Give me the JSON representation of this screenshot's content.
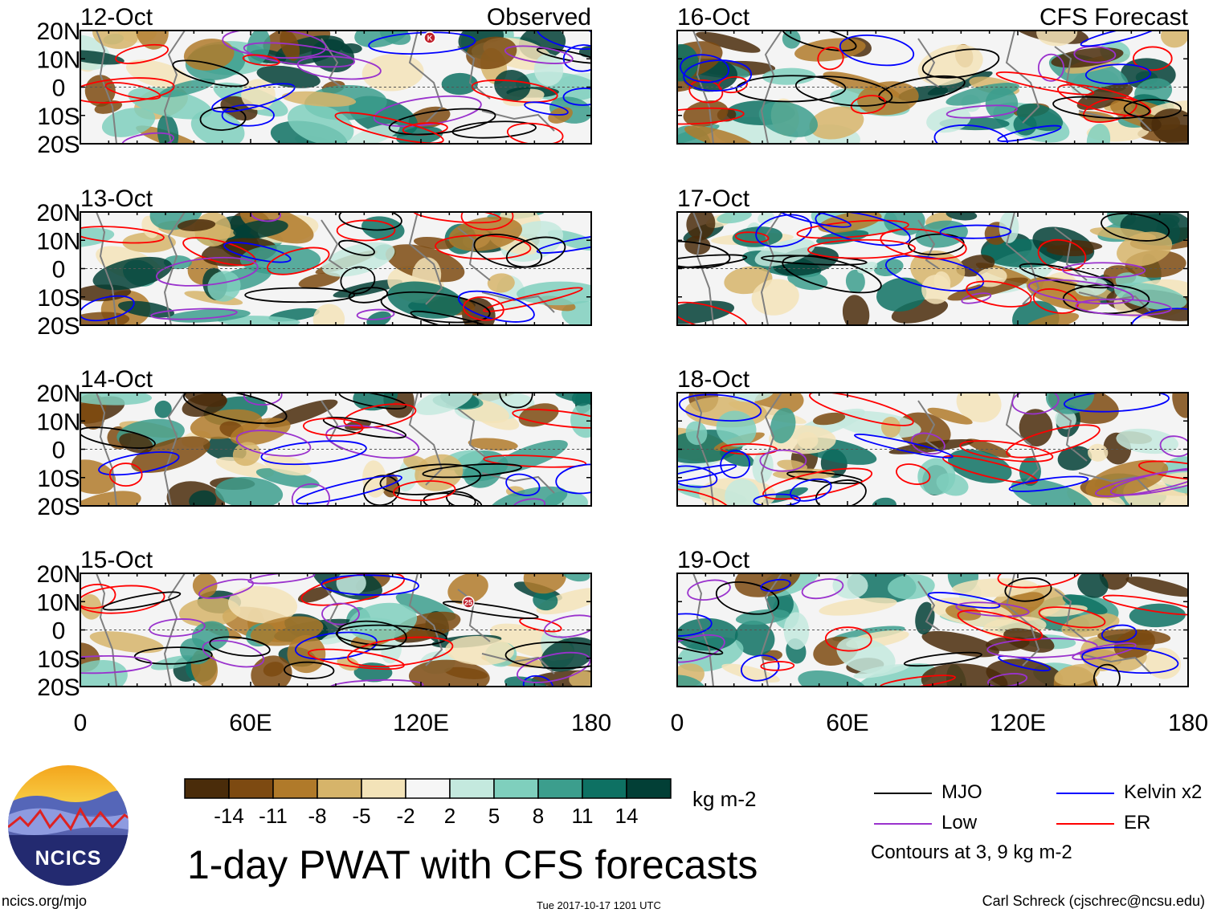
{
  "panels": [
    {
      "id": "p1",
      "date": "12-Oct",
      "label": "Observed",
      "col": 0,
      "row": 0
    },
    {
      "id": "p2",
      "date": "13-Oct",
      "label": "",
      "col": 0,
      "row": 1
    },
    {
      "id": "p3",
      "date": "14-Oct",
      "label": "",
      "col": 0,
      "row": 2
    },
    {
      "id": "p4",
      "date": "15-Oct",
      "label": "",
      "col": 0,
      "row": 3
    },
    {
      "id": "p5",
      "date": "16-Oct",
      "label": "CFS Forecast",
      "col": 1,
      "row": 0
    },
    {
      "id": "p6",
      "date": "17-Oct",
      "label": "",
      "col": 1,
      "row": 1
    },
    {
      "id": "p7",
      "date": "18-Oct",
      "label": "",
      "col": 1,
      "row": 2
    },
    {
      "id": "p8",
      "date": "19-Oct",
      "label": "",
      "col": 1,
      "row": 3
    }
  ],
  "lat_ticks": [
    "20N",
    "10N",
    "0",
    "10S",
    "20S"
  ],
  "lon_ticks": [
    "0",
    "60E",
    "120E",
    "180"
  ],
  "colorbar": {
    "colors": [
      "#4a2c0a",
      "#7d4a11",
      "#b07a2a",
      "#d6b46a",
      "#f3e3b8",
      "#f6f6f6",
      "#c4e9de",
      "#7fcfbd",
      "#3c9e8d",
      "#0e7163",
      "#023f36"
    ],
    "labels": [
      "-14",
      "-11",
      "-8",
      "-5",
      "-2",
      "2",
      "5",
      "8",
      "11",
      "14"
    ],
    "units": "kg m-2"
  },
  "legend": [
    {
      "label": "MJO",
      "color": "#000000"
    },
    {
      "label": "Kelvin x2",
      "color": "#0000ff"
    },
    {
      "label": "Low",
      "color": "#9a32cd"
    },
    {
      "label": "ER",
      "color": "#ff0000"
    }
  ],
  "contour_note": "Contours at 3, 9 kg m-2",
  "title": "1-day PWAT with CFS forecasts",
  "logo_text": "NCICS",
  "footer": {
    "left": "ncics.org/mjo",
    "middle": "Tue 2017-10-17 1201 UTC",
    "right": "Carl Schreck (cjschrec@ncsu.edu)"
  },
  "markers": [
    {
      "panel": "p1",
      "text": "K"
    },
    {
      "panel": "p4",
      "text": "25"
    }
  ]
}
